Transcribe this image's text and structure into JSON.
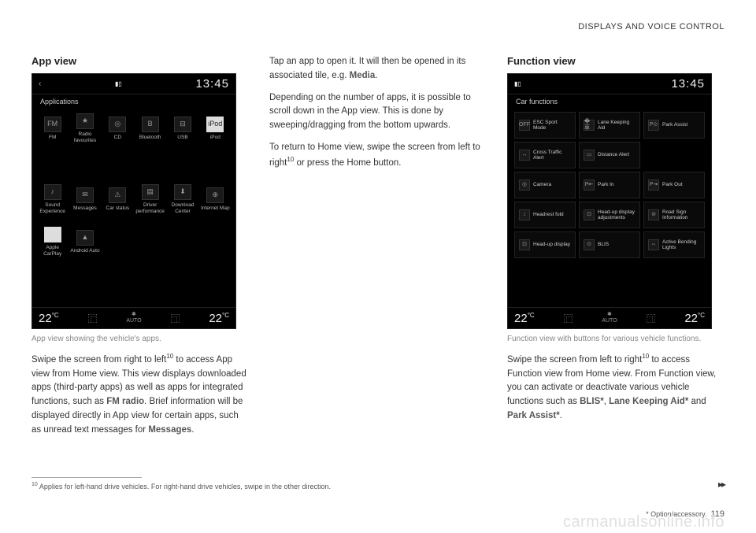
{
  "header": "DISPLAYS AND VOICE CONTROL",
  "col1": {
    "heading": "App view",
    "screen": {
      "time": "13:45",
      "subtitle": "Applications",
      "row1": [
        {
          "label": "FM",
          "glyph": "FM"
        },
        {
          "label": "Radio favourites",
          "glyph": "★"
        },
        {
          "label": "CD",
          "glyph": "◎"
        },
        {
          "label": "Bluetooth",
          "glyph": "B"
        },
        {
          "label": "USB",
          "glyph": "⊟"
        },
        {
          "label": "iPod",
          "glyph": "iPod",
          "light": true
        }
      ],
      "row2": [
        {
          "label": "Sound Experience",
          "glyph": "♪"
        },
        {
          "label": "Messages",
          "glyph": "✉"
        },
        {
          "label": "Car status",
          "glyph": "⚠"
        },
        {
          "label": "Driver performance",
          "glyph": "▤"
        },
        {
          "label": "Download Center",
          "glyph": "⬇"
        },
        {
          "label": "Internet Map",
          "glyph": "⊕"
        }
      ],
      "row3": [
        {
          "label": "Apple CarPlay",
          "glyph": "",
          "light": true
        },
        {
          "label": "Android Auto",
          "glyph": "▲"
        }
      ],
      "temp_left": "22",
      "temp_right": "22",
      "fan": "AUTO"
    },
    "caption": "App view showing the vehicle's apps.",
    "p1_a": "Swipe the screen from right to left",
    "p1_sup": "10",
    "p1_b": " to access App view from Home view. This view displays downloaded apps (third-party apps) as well as apps for integrated functions, such as ",
    "p1_bold1": "FM radio",
    "p1_c": ". Brief information will be displayed directly in App view for certain apps, such as unread text messages for ",
    "p1_bold2": "Messages",
    "p1_d": "."
  },
  "col2": {
    "p1_a": "Tap an app to open it. It will then be opened in its associated tile, e.g. ",
    "p1_bold": "Media",
    "p1_b": ".",
    "p2": "Depending on the number of apps, it is possible to scroll down in the App view. This is done by sweeping/dragging from the bottom upwards.",
    "p3_a": "To return to Home view, swipe the screen from left to right",
    "p3_sup": "10",
    "p3_b": " or press the Home button."
  },
  "col3": {
    "heading": "Function view",
    "screen": {
      "time": "13:45",
      "subtitle": "Car functions",
      "rows": [
        [
          {
            "i": "OFF",
            "t": "ESC Sport Mode"
          },
          {
            "i": "�車",
            "t": "Lane Keeping Aid"
          },
          {
            "i": "P⊙",
            "t": "Park Assist"
          }
        ],
        [
          {
            "i": "↔",
            "t": "Cross Traffic Alert"
          },
          {
            "i": "▭",
            "t": "Distance Alert"
          }
        ],
        [
          {
            "i": "◎",
            "t": "Camera"
          },
          {
            "i": "P⇤",
            "t": "Park In"
          },
          {
            "i": "P⇥",
            "t": "Park Out"
          }
        ],
        [
          {
            "i": "↕",
            "t": "Headrest fold"
          },
          {
            "i": "⊡",
            "t": "Head-up display adjustments"
          },
          {
            "i": "⊘",
            "t": "Road Sign Information"
          }
        ],
        [
          {
            "i": "⊡",
            "t": "Head-up display"
          },
          {
            "i": "⊙",
            "t": "BLIS"
          },
          {
            "i": "⇔",
            "t": "Active Bending Lights"
          }
        ]
      ],
      "temp_left": "22",
      "temp_right": "22",
      "fan": "AUTO"
    },
    "caption": "Function view with buttons for various vehicle functions.",
    "p1_a": "Swipe the screen from left to right",
    "p1_sup": "10",
    "p1_b": " to access Function view from Home view. From Function view, you can activate or deactivate various vehicle functions such as ",
    "p1_bold1": "BLIS*",
    "p1_c": ", ",
    "p1_bold2": "Lane Keeping Aid*",
    "p1_d": " and ",
    "p1_bold3": "Park Assist*",
    "p1_e": "."
  },
  "footnote": {
    "num": "10",
    "text": "Applies for left-hand drive vehicles. For right-hand drive vehicles, swipe in the other direction."
  },
  "footer": {
    "option": "* Option/accessory.",
    "page": "119"
  },
  "watermark": "carmanualsonline.info"
}
